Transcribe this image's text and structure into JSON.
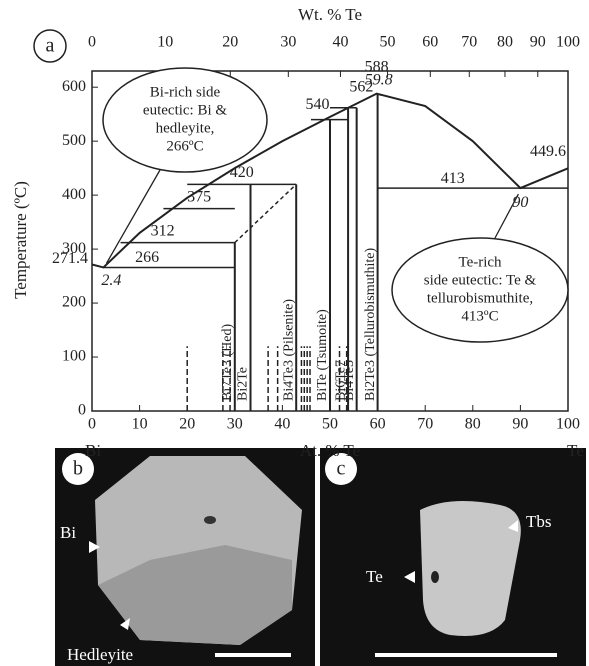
{
  "chart_data": {
    "type": "phase",
    "panel": "a",
    "x2_label": "Wt. % Te",
    "xlabel": "At. % Te",
    "ylabel": "Temperature (ºC)",
    "left_end": "Bi",
    "right_end": "Te",
    "xlim": [
      0,
      100
    ],
    "ylim": [
      0,
      630
    ],
    "xticks": [
      0,
      10,
      20,
      30,
      40,
      50,
      60,
      70,
      80,
      90,
      100
    ],
    "x2ticks": [
      0,
      10,
      20,
      30,
      40,
      50,
      60,
      70,
      80,
      90,
      100
    ],
    "yticks": [
      0,
      100,
      200,
      300,
      400,
      500,
      600
    ],
    "liquidus": {
      "x": [
        0,
        2.4,
        10,
        20,
        30,
        40,
        50,
        59.8,
        70,
        80,
        90,
        100
      ],
      "t": [
        271.4,
        266,
        330,
        395,
        450,
        500,
        545,
        588,
        565,
        500,
        413,
        449.6
      ]
    },
    "isotherms": [
      {
        "t": 266,
        "x": [
          2.4,
          30
        ]
      },
      {
        "t": 312,
        "x": [
          6,
          30
        ]
      },
      {
        "t": 375,
        "x": [
          15,
          30
        ]
      },
      {
        "t": 420,
        "x": [
          20,
          42.9
        ]
      },
      {
        "t": 540,
        "x": [
          46,
          53.8
        ]
      },
      {
        "t": 562,
        "x": [
          50,
          55.6
        ]
      },
      {
        "t": 413,
        "x": [
          60,
          100
        ]
      }
    ],
    "solvus": {
      "x": [
        30,
        42.9
      ],
      "t": [
        312,
        420
      ]
    },
    "phases": [
      {
        "label": "Bi7Te3 (Hed)",
        "x": 30,
        "t": 312
      },
      {
        "label": "Bi2Te",
        "x": 33.3,
        "t": 420
      },
      {
        "label": "Bi4Te3 (Pilsenite)",
        "x": 42.9,
        "t": 420
      },
      {
        "label": "BiTe (Tsumoite)",
        "x": 50,
        "t": 540
      },
      {
        "label": "Bi6Te7",
        "x": 53.8,
        "t": 562
      },
      {
        "label": "Bi4Te5",
        "x": 55.6,
        "t": 562
      },
      {
        "label": "Bi2Te3 (Tellurobismuthite)",
        "x": 60,
        "t": 588
      }
    ],
    "minerals": [
      20,
      27.5,
      29,
      37,
      39,
      44,
      44.6,
      45.2,
      45.8,
      52,
      53.5
    ],
    "mineral_t": 120,
    "callouts": [
      {
        "lines": [
          "Bi-rich side",
          "eutectic: Bi &",
          "hedleyite,",
          "266ºC"
        ]
      },
      {
        "lines": [
          "Te-rich",
          "side eutectic: Te &",
          "tellurobismuthite,",
          "413ºC"
        ]
      }
    ]
  },
  "photos": [
    {
      "panel": "b",
      "labels": [
        "Bi",
        "Hedleyite"
      ]
    },
    {
      "panel": "c",
      "labels": [
        "Te",
        "Tbs"
      ]
    }
  ]
}
